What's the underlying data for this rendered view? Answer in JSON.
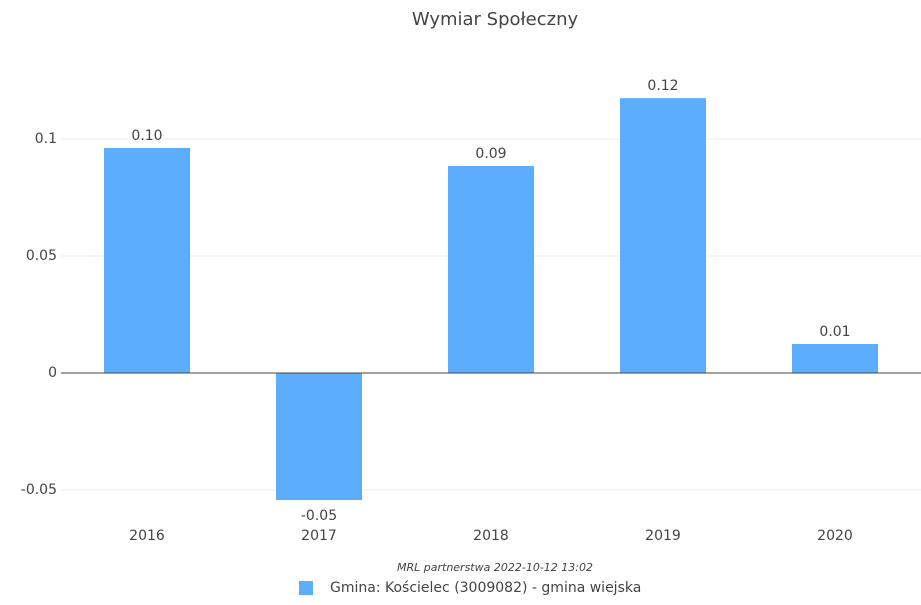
{
  "chart_data": {
    "type": "bar",
    "title": "Wymiar Społeczny",
    "categories": [
      "2016",
      "2017",
      "2018",
      "2019",
      "2020"
    ],
    "values": [
      0.0962,
      -0.0543,
      0.0885,
      0.1175,
      0.0124
    ],
    "value_labels": [
      "0.10",
      "-0.05",
      "0.09",
      "0.12",
      "0.01"
    ],
    "color": "#5caefd",
    "ylim": [
      -0.0607,
      0.1338
    ],
    "yticks": [
      -0.05,
      0,
      0.05,
      0.1
    ],
    "grid": true,
    "note": "MRL partnerstwa 2022-10-12 13:02",
    "series_name": "Gmina: Kościelec (3009082) - gmina wiejska",
    "legend": "bottom"
  }
}
